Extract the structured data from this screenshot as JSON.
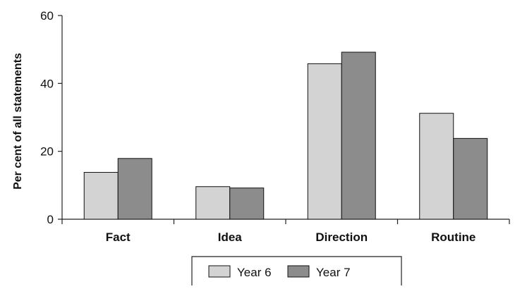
{
  "chart_data": {
    "type": "bar",
    "ylabel": "Per cent of all statements",
    "xlabel": "",
    "title": "",
    "ylim": [
      0,
      60
    ],
    "yticks": [
      0,
      20,
      40,
      60
    ],
    "categories": [
      "Fact",
      "Idea",
      "Direction",
      "Routine"
    ],
    "series": [
      {
        "name": "Year 6",
        "values": [
          13.8,
          9.6,
          45.8,
          31.2
        ],
        "color": "#d3d3d3"
      },
      {
        "name": "Year 7",
        "values": [
          17.9,
          9.2,
          49.2,
          23.8
        ],
        "color": "#8c8c8c"
      }
    ],
    "grid": false,
    "legend_position": "bottom"
  }
}
